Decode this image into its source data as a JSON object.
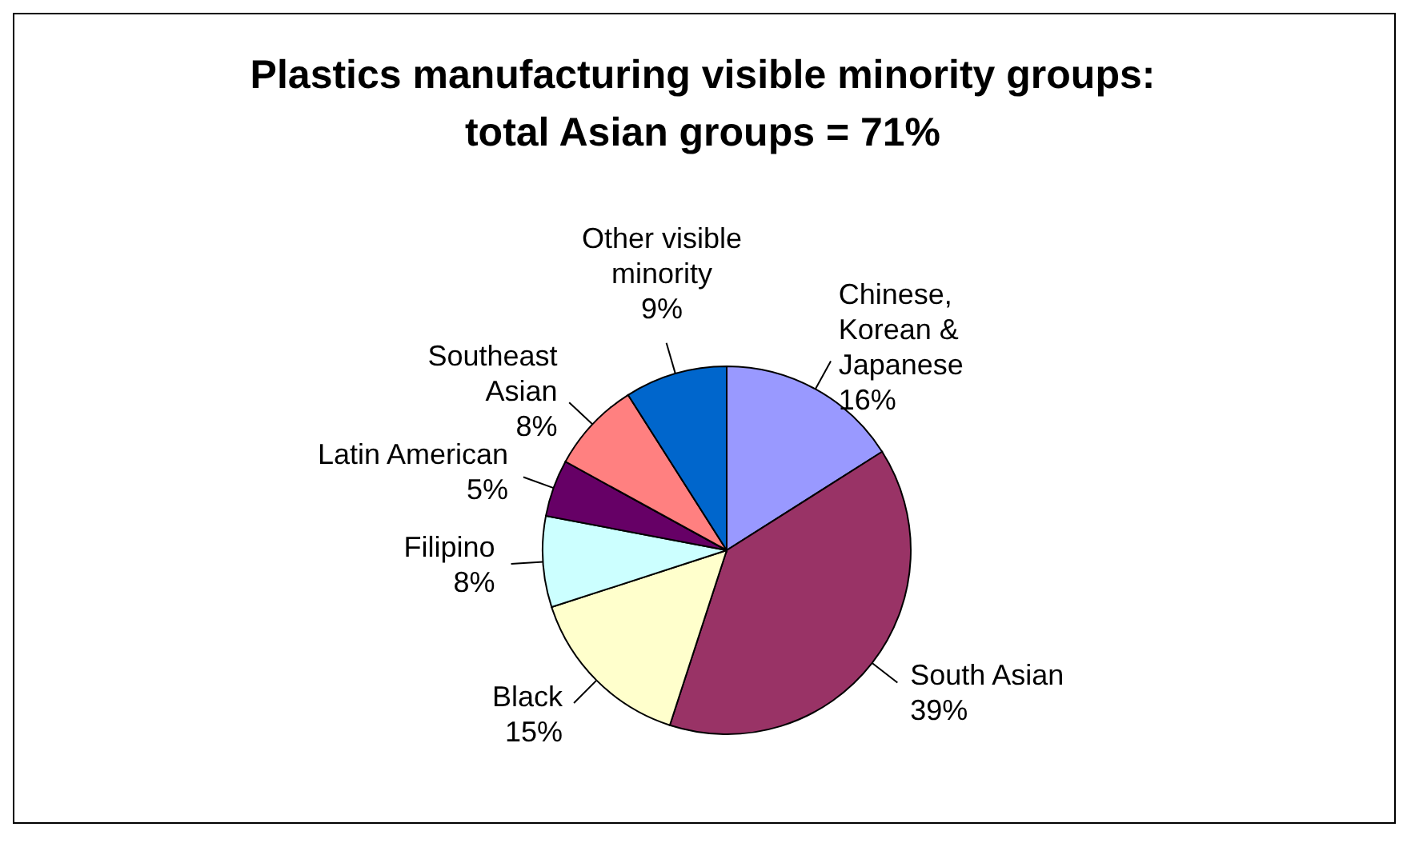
{
  "chart_data": {
    "type": "pie",
    "title": "Plastics manufacturing visible minority groups: total Asian groups = 71%",
    "categories": [
      "Chinese, Korean & Japanese",
      "South Asian",
      "Black",
      "Filipino",
      "Latin American",
      "Southeast Asian",
      "Other visible minority"
    ],
    "values": [
      16,
      39,
      15,
      8,
      5,
      8,
      9
    ],
    "value_labels": [
      "16%",
      "39%",
      "15%",
      "8%",
      "5%",
      "8%",
      "9%"
    ],
    "colors": [
      "#9999ff",
      "#993366",
      "#ffffcc",
      "#ccffff",
      "#660066",
      "#ff8080",
      "#0066cc"
    ]
  }
}
